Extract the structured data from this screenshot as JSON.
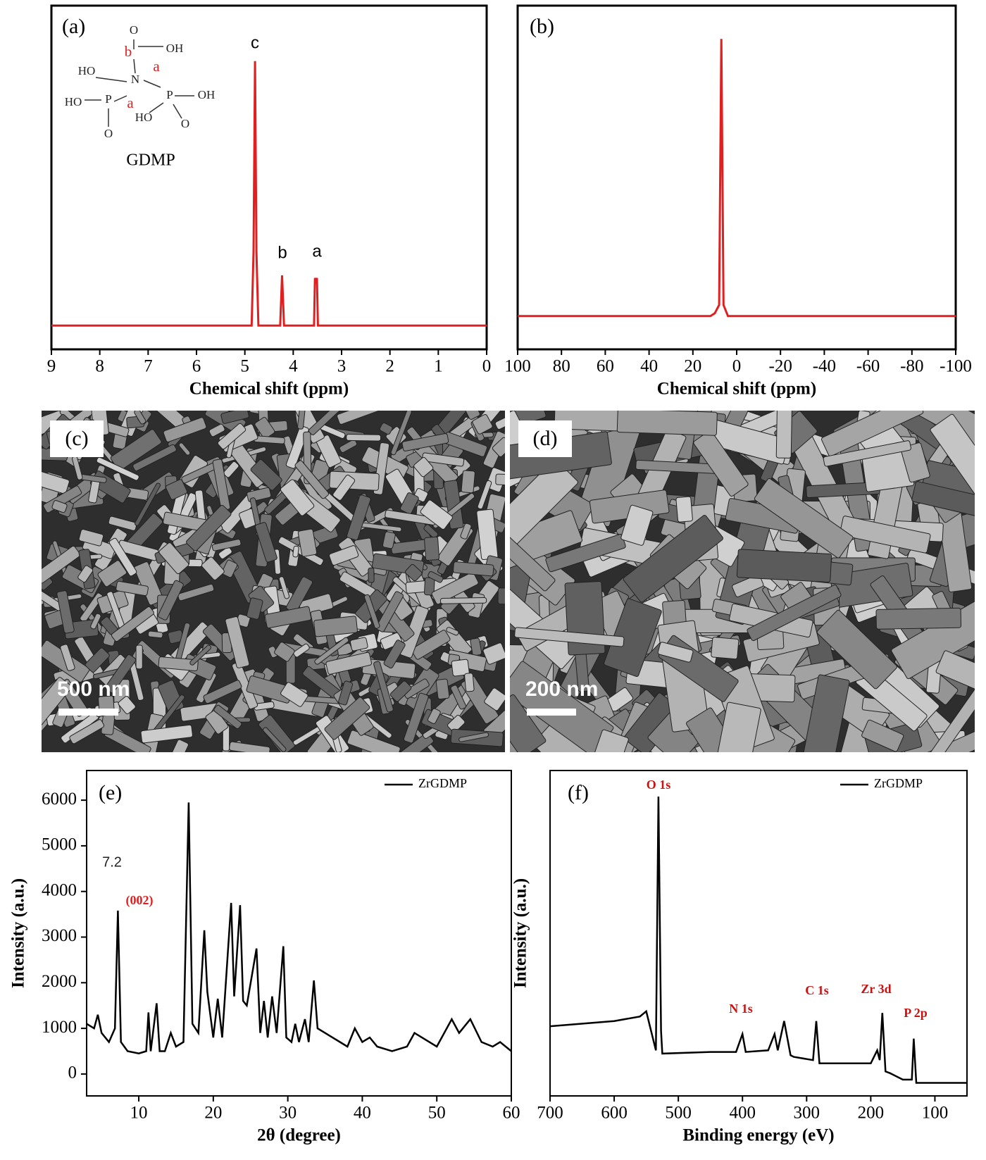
{
  "chart_data": [
    {
      "type": "line",
      "panel": "(a)",
      "xlabel": "Chemical shift (ppm)",
      "xlim": [
        9,
        0
      ],
      "ylim": [
        -9,
        121
      ],
      "xticks": [
        9,
        8,
        7,
        6,
        5,
        4,
        3,
        2,
        1,
        0
      ],
      "x": [
        9,
        4.86,
        4.82,
        4.79,
        4.76,
        4.72,
        4.27,
        4.23,
        4.19,
        3.6,
        3.57,
        3.55,
        3.53,
        3.51,
        3.49,
        3.45,
        0
      ],
      "series": [
        {
          "color": "#e02020",
          "values": [
            0,
            0,
            28,
            100,
            28,
            0,
            0,
            19,
            0,
            0,
            0,
            18,
            16,
            18,
            0,
            0,
            0
          ]
        }
      ],
      "annotations": [
        {
          "text": "c"
        },
        {
          "text": "b"
        },
        {
          "text": "a"
        }
      ],
      "structure": {
        "name": "GDMP",
        "atoms": [
          "O",
          "OH",
          "b",
          "HO",
          "N",
          "a",
          "HO",
          "P",
          "a",
          "P",
          "OH",
          "HO",
          "O",
          "O"
        ]
      }
    },
    {
      "type": "line",
      "panel": "(b)",
      "xlabel": "Chemical shift (ppm)",
      "xlim": [
        100,
        -100
      ],
      "ylim": [
        -12,
        112
      ],
      "xticks": [
        100,
        80,
        60,
        40,
        20,
        0,
        -20,
        -40,
        -60,
        -80,
        -100
      ],
      "x": [
        100,
        60,
        30,
        12,
        10,
        8,
        7,
        6,
        4,
        -40,
        -100
      ],
      "series": [
        {
          "color": "#e02020",
          "values": [
            0,
            0,
            0,
            0,
            1,
            4,
            100,
            4,
            0,
            0,
            0
          ]
        }
      ]
    },
    {
      "type": "line",
      "panel": "(e)",
      "xlabel": "2θ (degree)",
      "ylabel": "Intensity (a.u.)",
      "xlim": [
        3,
        60
      ],
      "ylim": [
        -480,
        6650
      ],
      "xticks": [
        10,
        20,
        30,
        40,
        50,
        60
      ],
      "yticks": [
        0,
        1000,
        2000,
        3000,
        4000,
        5000,
        6000
      ],
      "x": [
        3,
        4,
        4.5,
        5,
        6,
        6.8,
        7.2,
        7.6,
        8.5,
        10,
        11,
        11.3,
        11.6,
        12.4,
        12.8,
        13.5,
        14.3,
        15,
        16,
        16.7,
        17.2,
        18,
        18.8,
        19.2,
        20,
        20.6,
        21.2,
        22.4,
        22.8,
        23.6,
        24,
        24.5,
        25.8,
        26.3,
        26.8,
        27.3,
        27.9,
        28.5,
        29.4,
        29.8,
        30.5,
        31,
        31.5,
        32.3,
        32.8,
        33.5,
        34,
        35,
        36,
        37,
        38,
        39,
        40,
        41,
        42,
        44,
        46,
        47,
        48,
        50,
        52,
        53,
        54.5,
        56,
        57.5,
        58.5,
        60
      ],
      "series": [
        {
          "name": "ZrGDMP",
          "color": "#000000",
          "values": [
            1100,
            1000,
            1300,
            900,
            700,
            1000,
            3580,
            700,
            500,
            450,
            500,
            1350,
            500,
            1550,
            500,
            500,
            900,
            600,
            700,
            5950,
            1100,
            900,
            3150,
            1800,
            800,
            1650,
            800,
            3750,
            1700,
            3700,
            1600,
            1500,
            2750,
            900,
            1600,
            800,
            1700,
            900,
            2800,
            800,
            700,
            1100,
            700,
            1200,
            700,
            2050,
            1000,
            900,
            800,
            700,
            600,
            1000,
            700,
            800,
            600,
            500,
            600,
            900,
            800,
            600,
            1200,
            900,
            1200,
            700,
            600,
            700,
            500
          ]
        }
      ],
      "annotations": [
        {
          "text": "7.2",
          "color": "#222222"
        },
        {
          "text": "(002)",
          "color": "#e02020"
        }
      ]
    },
    {
      "type": "line",
      "panel": "(f)",
      "xlabel": "Binding energy (eV)",
      "ylabel": "Intensity (a.u.)",
      "xlim": [
        700,
        50
      ],
      "ylim": [
        0,
        100
      ],
      "xticks": [
        700,
        600,
        500,
        400,
        300,
        200,
        100
      ],
      "x": [
        700,
        600,
        560,
        550,
        540,
        535,
        531,
        527,
        525,
        450,
        410,
        400,
        395,
        360,
        350,
        345,
        335,
        325,
        320,
        290,
        285,
        280,
        200,
        190,
        186,
        182,
        177,
        170,
        150,
        136,
        133,
        129,
        100,
        50
      ],
      "series": [
        {
          "name": "ZrGDMP",
          "color": "#000000",
          "values": [
            21.4,
            23,
            24.4,
            26,
            18,
            14,
            92,
            20,
            13,
            13.5,
            13.5,
            19,
            13.5,
            14,
            19,
            14,
            23,
            12.5,
            12,
            11,
            23,
            10,
            10,
            14,
            11,
            25.5,
            7.5,
            7,
            5,
            5,
            17.6,
            4,
            4,
            4
          ]
        }
      ],
      "annotations": [
        {
          "text": "O 1s",
          "color": "#cc1111"
        },
        {
          "text": "N 1s",
          "color": "#cc1111"
        },
        {
          "text": "C 1s",
          "color": "#cc1111"
        },
        {
          "text": "Zr 3d",
          "color": "#cc1111"
        },
        {
          "text": "P 2p",
          "color": "#cc1111"
        }
      ]
    }
  ],
  "images": [
    {
      "panel": "(c)",
      "scale_bar": "500 nm"
    },
    {
      "panel": "(d)",
      "scale_bar": "200 nm"
    }
  ]
}
